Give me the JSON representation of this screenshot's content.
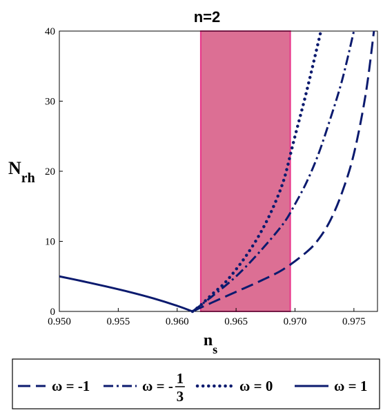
{
  "chart_data": {
    "type": "line",
    "title": "n=2",
    "xlabel": {
      "main": "n",
      "sub": "s"
    },
    "ylabel": {
      "main": "N",
      "sub": "rh"
    },
    "xlim": [
      0.95,
      0.977
    ],
    "ylim": [
      0,
      40
    ],
    "xticks": [
      "0.950",
      "0.955",
      "0.960",
      "0.965",
      "0.970",
      "0.975"
    ],
    "xtick_values": [
      0.95,
      0.955,
      0.96,
      0.965,
      0.97,
      0.975
    ],
    "yticks": [
      "0",
      "10",
      "20",
      "30",
      "40"
    ],
    "ytick_values": [
      0,
      10,
      20,
      30,
      40
    ],
    "grid": false,
    "shaded_band": {
      "x_range": [
        0.962,
        0.9696
      ],
      "fill": "#dc6f94",
      "edge": "#e8358a"
    },
    "line_color": "#0b1a6e",
    "series": [
      {
        "name": "ω = -1",
        "dash": "long-dash",
        "x": [
          0.9613,
          0.963,
          0.965,
          0.967,
          0.969,
          0.971,
          0.972,
          0.973,
          0.974,
          0.975,
          0.976,
          0.9767
        ],
        "y": [
          0,
          1.3,
          2.8,
          4.3,
          6.0,
          8.5,
          10.3,
          13.0,
          17.0,
          22.5,
          31.0,
          40
        ]
      },
      {
        "name": "ω = -1/3",
        "dash": "dash-dot",
        "x": [
          0.9613,
          0.963,
          0.965,
          0.967,
          0.969,
          0.97,
          0.971,
          0.972,
          0.973,
          0.974,
          0.975
        ],
        "y": [
          0,
          2.2,
          5.0,
          8.5,
          12.5,
          15.3,
          18.5,
          22.5,
          27.5,
          33.0,
          40
        ]
      },
      {
        "name": "ω = 0",
        "dash": "dotted",
        "x": [
          0.9613,
          0.962,
          0.963,
          0.964,
          0.965,
          0.966,
          0.967,
          0.968,
          0.969,
          0.9697,
          0.97,
          0.971,
          0.9722
        ],
        "y": [
          0,
          0.9,
          2.5,
          4.0,
          6.0,
          8.3,
          11.0,
          14.3,
          18.5,
          23.0,
          25.0,
          31.5,
          40
        ]
      },
      {
        "name": "ω = 1",
        "dash": "solid",
        "x": [
          0.95,
          0.952,
          0.954,
          0.956,
          0.958,
          0.96,
          0.9613
        ],
        "y": [
          5.0,
          4.3,
          3.55,
          2.75,
          1.85,
          0.8,
          0
        ]
      }
    ],
    "legend": [
      {
        "omega": "ω = -1",
        "dash": "long-dash"
      },
      {
        "omega": "ω = -",
        "frac_num": "1",
        "frac_den": "3",
        "dash": "dash-dot"
      },
      {
        "omega": "ω = 0",
        "dash": "dotted"
      },
      {
        "omega": "ω = 1",
        "dash": "solid"
      }
    ]
  }
}
